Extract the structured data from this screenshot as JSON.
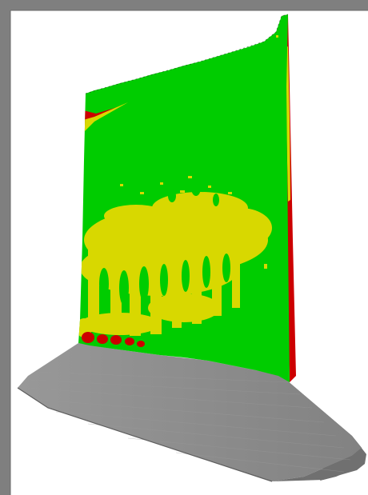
{
  "colors": {
    "frame": "#7f7f7f",
    "background": "#ffffff",
    "contour_green": "#00cc00",
    "contour_yellow": "#d8d800",
    "contour_red": "#cc0000",
    "base_top": "#8c8c8c",
    "base_front": "#7a7a7a",
    "base_side": "#686868",
    "edge_shadow": "#2a2a2a"
  },
  "icons": [
    "3d-wall-model-icon"
  ]
}
